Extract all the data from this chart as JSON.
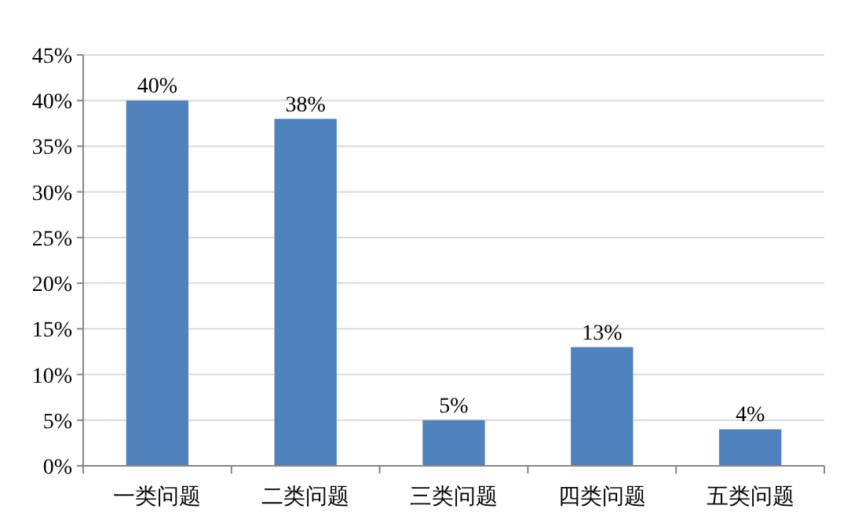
{
  "chart_data": {
    "type": "bar",
    "categories": [
      "一类问题",
      "二类问题",
      "三类问题",
      "四类问题",
      "五类问题"
    ],
    "values": [
      40,
      38,
      5,
      13,
      4
    ],
    "value_labels": [
      "40%",
      "38%",
      "5%",
      "13%",
      "4%"
    ],
    "color": "#4f81bd",
    "ylim": [
      0,
      45
    ],
    "yticks": [
      {
        "value": 0,
        "label": "0%"
      },
      {
        "value": 5,
        "label": "5%"
      },
      {
        "value": 10,
        "label": "10%"
      },
      {
        "value": 15,
        "label": "15%"
      },
      {
        "value": 20,
        "label": "20%"
      },
      {
        "value": 25,
        "label": "25%"
      },
      {
        "value": 30,
        "label": "30%"
      },
      {
        "value": 35,
        "label": "35%"
      },
      {
        "value": 40,
        "label": "40%"
      },
      {
        "value": 45,
        "label": "45%"
      }
    ],
    "grid": "y"
  }
}
